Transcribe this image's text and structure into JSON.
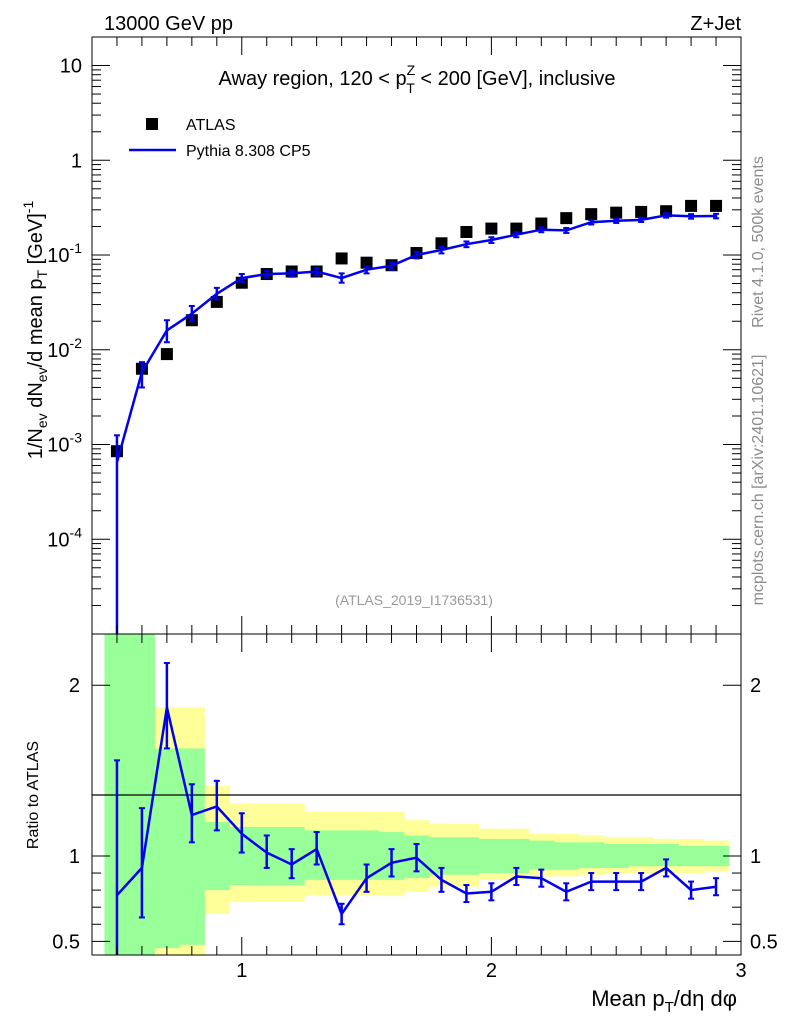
{
  "header": {
    "left": "13000 GeV pp",
    "right": "Z+Jet"
  },
  "side": {
    "rivet": "Rivet 4.1.0,  500k events",
    "mcplots": "mcplots.cern.ch [arXiv:2401.10621]"
  },
  "chart_data": [
    {
      "type": "scatter",
      "panel": "main",
      "title": "Away region, 120 < pTZ < 200 [GeV], inclusive",
      "title_parts": {
        "a": "Away region, 120 < p",
        "sup": "Z",
        "sub": "T",
        "b": " < 200 [GeV], inclusive"
      },
      "ylabel": "1/Nev dNev/d mean pT [GeV]^-1",
      "ylabel_parts": {
        "a": "1/N",
        "ev": "ev",
        "b": " dN",
        "c": "/d mean p",
        "T": "T",
        "d": " [GeV]",
        "exp": "-1"
      },
      "xlabel": "Mean pT/dη dφ",
      "xlabel_parts": {
        "a": "Mean p",
        "T": "T",
        "b": "/dη dφ"
      },
      "yscale": "log",
      "ylim": [
        1e-05,
        20
      ],
      "xlim": [
        0.4,
        3.0
      ],
      "yticks": [
        {
          "v": 0.0001,
          "base": "10",
          "exp": "-4"
        },
        {
          "v": 0.001,
          "base": "10",
          "exp": "-3"
        },
        {
          "v": 0.01,
          "base": "10",
          "exp": "-2"
        },
        {
          "v": 0.1,
          "base": "10",
          "exp": "-1"
        },
        {
          "v": 1,
          "base": "1",
          "exp": ""
        },
        {
          "v": 10,
          "base": "10",
          "exp": ""
        }
      ],
      "watermark": "(ATLAS_2019_I1736531)",
      "legend": [
        {
          "name": "ATLAS",
          "style": "square",
          "color": "#000000"
        },
        {
          "name": "Pythia 8.308 CP5",
          "style": "line",
          "color": "#0000ee"
        }
      ],
      "series": [
        {
          "name": "ATLAS",
          "x": [
            0.5,
            0.6,
            0.7,
            0.8,
            0.9,
            1.0,
            1.1,
            1.2,
            1.3,
            1.4,
            1.5,
            1.6,
            1.7,
            1.8,
            1.9,
            2.0,
            2.1,
            2.2,
            2.3,
            2.4,
            2.5,
            2.6,
            2.7,
            2.8,
            2.9
          ],
          "y": [
            0.00085,
            0.0063,
            0.009,
            0.0205,
            0.032,
            0.051,
            0.063,
            0.067,
            0.067,
            0.092,
            0.083,
            0.078,
            0.105,
            0.133,
            0.175,
            0.19,
            0.19,
            0.215,
            0.245,
            0.27,
            0.28,
            0.285,
            0.29,
            0.33,
            0.33
          ]
        },
        {
          "name": "Pythia 8.308 CP5",
          "x": [
            0.5,
            0.6,
            0.7,
            0.8,
            0.9,
            1.0,
            1.1,
            1.2,
            1.3,
            1.4,
            1.5,
            1.6,
            1.7,
            1.8,
            1.9,
            2.0,
            2.1,
            2.2,
            2.3,
            2.4,
            2.5,
            2.6,
            2.7,
            2.8,
            2.9
          ],
          "y": [
            0.00065,
            0.0058,
            0.016,
            0.024,
            0.039,
            0.057,
            0.063,
            0.064,
            0.067,
            0.057,
            0.07,
            0.077,
            0.1,
            0.113,
            0.13,
            0.144,
            0.164,
            0.185,
            0.182,
            0.222,
            0.23,
            0.235,
            0.262,
            0.256,
            0.258
          ],
          "err_up": [
            0.0006,
            0.0016,
            0.0045,
            0.005,
            0.006,
            0.006,
            0.005,
            0.005,
            0.006,
            0.007,
            0.006,
            0.007,
            0.008,
            0.009,
            0.009,
            0.01,
            0.01,
            0.011,
            0.011,
            0.012,
            0.012,
            0.012,
            0.014,
            0.014,
            0.014
          ],
          "err_down": [
            0.00064,
            0.0018,
            0.004,
            0.004,
            0.005,
            0.005,
            0.005,
            0.005,
            0.006,
            0.006,
            0.006,
            0.007,
            0.008,
            0.009,
            0.009,
            0.01,
            0.01,
            0.011,
            0.011,
            0.012,
            0.012,
            0.012,
            0.014,
            0.014,
            0.014
          ]
        }
      ]
    },
    {
      "type": "line",
      "panel": "ratio",
      "ylabel": "Ratio to ATLAS",
      "ylim": [
        0.42,
        2.3
      ],
      "xlim": [
        0.4,
        3.0
      ],
      "yticks": [
        0.5,
        1,
        2
      ],
      "xticks": [
        1,
        2,
        3
      ],
      "bands": {
        "edges": [
          0.45,
          0.55,
          0.65,
          0.75,
          0.85,
          0.95,
          1.05,
          1.15,
          1.25,
          1.35,
          1.45,
          1.55,
          1.65,
          1.75,
          1.85,
          1.95,
          2.05,
          2.15,
          2.25,
          2.35,
          2.45,
          2.55,
          2.65,
          2.75,
          2.85,
          2.95
        ],
        "yellow_lo": [
          0.4,
          0.4,
          0.4,
          0.4,
          0.66,
          0.73,
          0.73,
          0.73,
          0.77,
          0.77,
          0.77,
          0.77,
          0.79,
          0.82,
          0.82,
          0.86,
          0.86,
          0.88,
          0.88,
          0.89,
          0.9,
          0.9,
          0.9,
          0.9,
          0.91
        ],
        "yellow_hi": [
          2.4,
          2.4,
          1.87,
          1.87,
          1.41,
          1.31,
          1.31,
          1.31,
          1.26,
          1.26,
          1.26,
          1.26,
          1.21,
          1.19,
          1.19,
          1.16,
          1.16,
          1.13,
          1.13,
          1.12,
          1.11,
          1.11,
          1.1,
          1.1,
          1.09
        ],
        "green_lo": [
          0.4,
          0.4,
          0.46,
          0.48,
          0.8,
          0.83,
          0.83,
          0.83,
          0.86,
          0.86,
          0.86,
          0.86,
          0.87,
          0.89,
          0.89,
          0.9,
          0.9,
          0.92,
          0.92,
          0.93,
          0.93,
          0.94,
          0.94,
          0.94,
          0.94
        ],
        "green_hi": [
          2.4,
          2.4,
          1.63,
          1.63,
          1.2,
          1.17,
          1.17,
          1.17,
          1.15,
          1.15,
          1.15,
          1.14,
          1.12,
          1.11,
          1.11,
          1.1,
          1.1,
          1.09,
          1.08,
          1.08,
          1.07,
          1.07,
          1.07,
          1.06,
          1.06
        ],
        "yellow_color": "#ffff99",
        "green_color": "#99ff99"
      },
      "series": [
        {
          "name": "Pythia 8.308 CP5 / ATLAS",
          "color": "#0000ee",
          "x": [
            0.5,
            0.6,
            0.7,
            0.8,
            0.9,
            1.0,
            1.1,
            1.2,
            1.3,
            1.4,
            1.5,
            1.6,
            1.7,
            1.8,
            1.9,
            2.0,
            2.1,
            2.2,
            2.3,
            2.4,
            2.5,
            2.6,
            2.7,
            2.8,
            2.9
          ],
          "y": [
            0.77,
            0.93,
            1.87,
            1.24,
            1.29,
            1.13,
            1.02,
            0.95,
            1.04,
            0.66,
            0.87,
            0.96,
            0.99,
            0.86,
            0.78,
            0.79,
            0.88,
            0.87,
            0.79,
            0.85,
            0.85,
            0.85,
            0.93,
            0.8,
            0.82
          ],
          "err_up": [
            0.79,
            0.35,
            0.26,
            0.18,
            0.15,
            0.12,
            0.1,
            0.09,
            0.1,
            0.06,
            0.08,
            0.08,
            0.08,
            0.07,
            0.05,
            0.05,
            0.05,
            0.05,
            0.05,
            0.05,
            0.05,
            0.05,
            0.05,
            0.05,
            0.05
          ],
          "err_down": [
            0.77,
            0.29,
            0.24,
            0.16,
            0.14,
            0.11,
            0.09,
            0.08,
            0.09,
            0.06,
            0.08,
            0.08,
            0.08,
            0.07,
            0.05,
            0.05,
            0.05,
            0.05,
            0.05,
            0.05,
            0.05,
            0.05,
            0.05,
            0.05,
            0.05
          ]
        }
      ]
    }
  ]
}
